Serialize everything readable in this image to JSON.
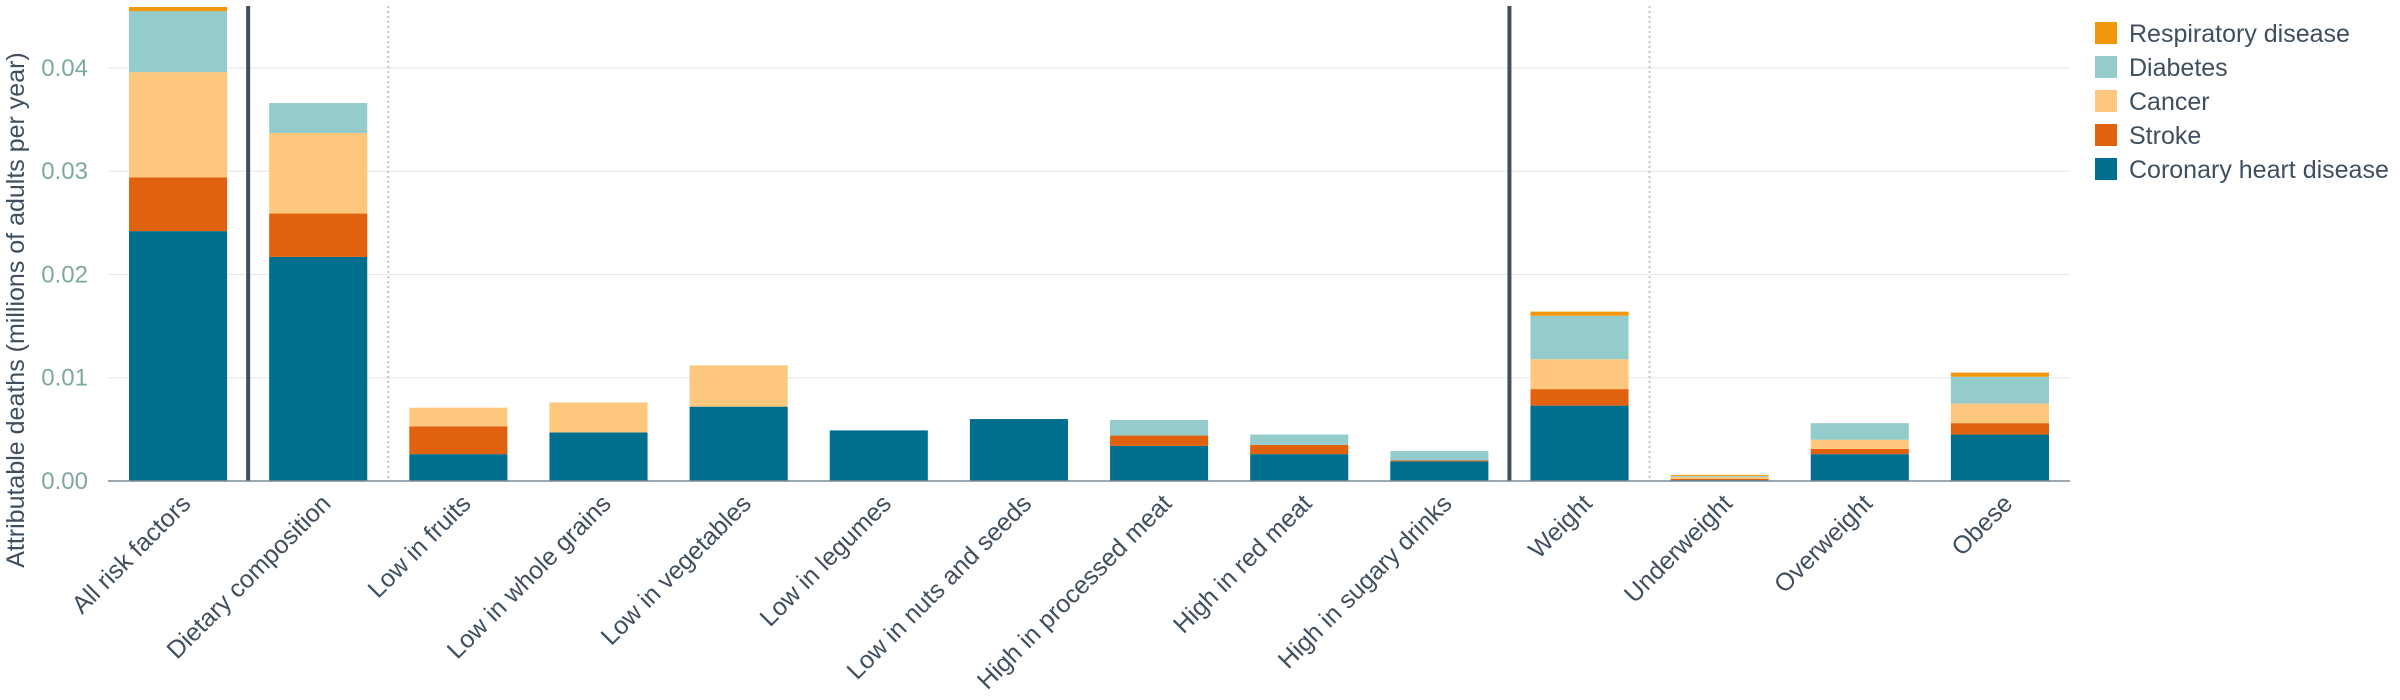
{
  "chart_data": {
    "type": "bar",
    "stacked": true,
    "title": "",
    "xlabel": "",
    "ylabel": "Attributable deaths (millions of adults per year)",
    "ylim": [
      0,
      0.046
    ],
    "yticks": [
      0.0,
      0.01,
      0.02,
      0.03,
      0.04
    ],
    "ytick_labels": [
      "0.00",
      "0.01",
      "0.02",
      "0.03",
      "0.04"
    ],
    "grid": true,
    "legend_position": "top-right",
    "categories": [
      "All risk factors",
      "Dietary composition",
      "Low in fruits",
      "Low in whole grains",
      "Low in vegetables",
      "Low in legumes",
      "Low in nuts and seeds",
      "High in processed meat",
      "High in red meat",
      "High in sugary drinks",
      "Weight",
      "Underweight",
      "Overweight",
      "Obese"
    ],
    "group_separators_after": [
      0,
      9
    ],
    "subgroup_separators_after": [
      1,
      10
    ],
    "series": [
      {
        "name": "Coronary heart disease",
        "color": "#006f8e",
        "values": [
          0.0242,
          0.0217,
          0.0026,
          0.0047,
          0.0072,
          0.0049,
          0.006,
          0.0034,
          0.0026,
          0.0019,
          0.0073,
          0.0001,
          0.0026,
          0.0045
        ]
      },
      {
        "name": "Stroke",
        "color": "#e0610e",
        "values": [
          0.0052,
          0.0042,
          0.0027,
          0.0,
          0.0,
          0.0,
          0.0,
          0.001,
          0.0009,
          0.0001,
          0.0016,
          0.0001,
          0.0005,
          0.0011
        ]
      },
      {
        "name": "Cancer",
        "color": "#fdc87e",
        "values": [
          0.0102,
          0.0078,
          0.0018,
          0.0029,
          0.004,
          0.0,
          0.0,
          0.0,
          0.0,
          0.0,
          0.0029,
          0.0002,
          0.0009,
          0.0019
        ]
      },
      {
        "name": "Diabetes",
        "color": "#93cccb",
        "values": [
          0.0059,
          0.0029,
          0.0,
          0.0,
          0.0,
          0.0,
          0.0,
          0.0015,
          0.001,
          0.0009,
          0.0042,
          0.0001,
          0.0016,
          0.0026
        ]
      },
      {
        "name": "Respiratory disease",
        "color": "#f2960c",
        "values": [
          0.0004,
          0.0,
          0.0,
          0.0,
          0.0,
          0.0,
          0.0,
          0.0,
          0.0,
          0.0,
          0.0004,
          0.0001,
          0.0,
          0.0004
        ]
      }
    ],
    "legend_order": [
      "Respiratory disease",
      "Diabetes",
      "Cancer",
      "Stroke",
      "Coronary heart disease"
    ]
  }
}
